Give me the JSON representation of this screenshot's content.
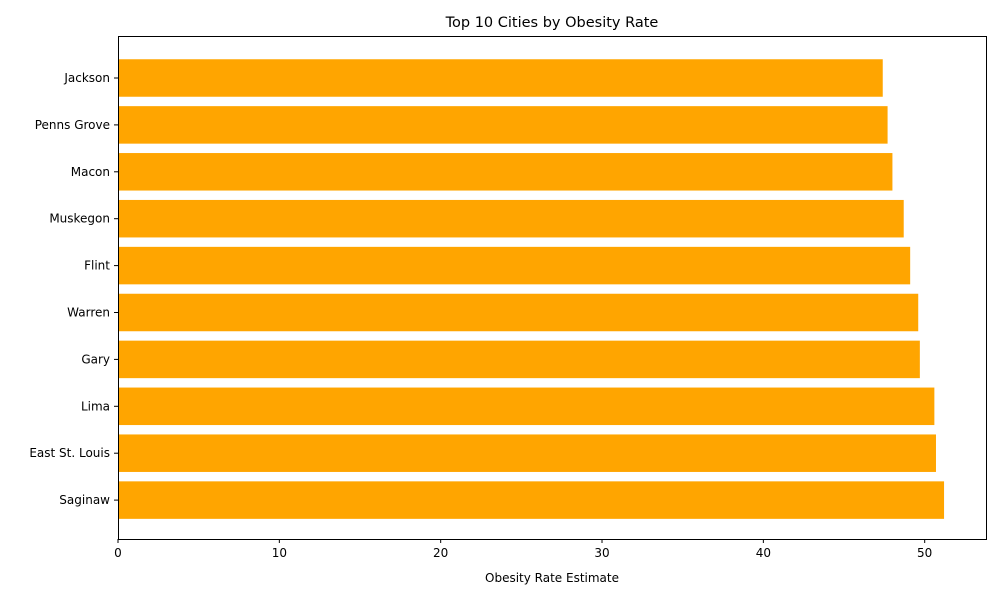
{
  "chart_data": {
    "type": "bar",
    "orientation": "horizontal",
    "title": "Top 10 Cities by Obesity Rate",
    "xlabel": "Obesity Rate Estimate",
    "ylabel": "",
    "categories": [
      "Jackson",
      "Penns Grove",
      "Macon",
      "Muskegon",
      "Flint",
      "Warren",
      "Gary",
      "Lima",
      "East St. Louis",
      "Saginaw"
    ],
    "values": [
      47.4,
      47.7,
      48.0,
      48.7,
      49.1,
      49.6,
      49.7,
      50.6,
      50.7,
      51.2
    ],
    "xlim": [
      0,
      53.8
    ],
    "xticks": [
      0,
      10,
      20,
      30,
      40,
      50
    ],
    "bar_color": "#ffa500",
    "grid": false,
    "legend": "none"
  }
}
